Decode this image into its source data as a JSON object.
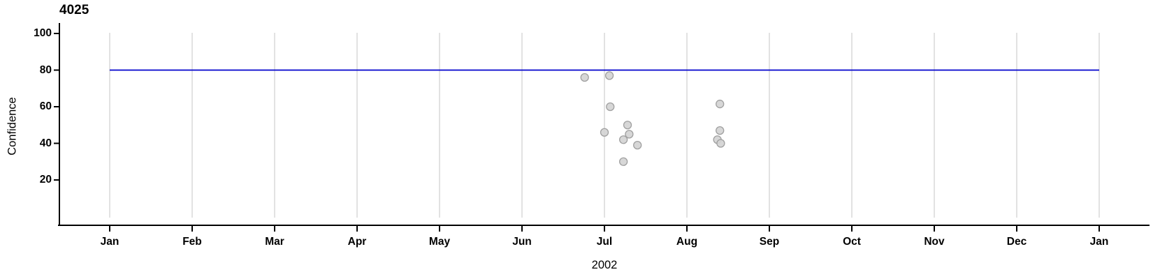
{
  "chart_data": {
    "type": "scatter",
    "title": "4025",
    "xlabel": "2002",
    "ylabel": "Confidence",
    "legend": "none",
    "grid": "vertical month gridlines only",
    "x_axis": {
      "unit": "months of year 2002 (0 = Jan 2002, 12 = Jan 2003)",
      "tick_labels": [
        "Jan",
        "Feb",
        "Mar",
        "Apr",
        "May",
        "Jun",
        "Jul",
        "Aug",
        "Sep",
        "Oct",
        "Nov",
        "Dec",
        "Jan"
      ],
      "range_months": [
        0,
        12
      ],
      "year_label": "2002"
    },
    "y_axis": {
      "label": "Confidence",
      "tick_labels": [
        100,
        80,
        60,
        40,
        20
      ],
      "range": [
        0,
        105
      ]
    },
    "reference_line": {
      "y": 80,
      "span_months": [
        0,
        12
      ],
      "color": "#0000CC"
    },
    "points": [
      {
        "month": 5.76,
        "date_approx": "2002-06-23",
        "confidence": 76
      },
      {
        "month": 6.06,
        "date_approx": "2002-07-02",
        "confidence": 77
      },
      {
        "month": 6.07,
        "date_approx": "2002-07-03",
        "confidence": 60
      },
      {
        "month": 6.0,
        "date_approx": "2002-07-01",
        "confidence": 46
      },
      {
        "month": 6.28,
        "date_approx": "2002-07-09",
        "confidence": 50
      },
      {
        "month": 6.3,
        "date_approx": "2002-07-10",
        "confidence": 45
      },
      {
        "month": 6.23,
        "date_approx": "2002-07-08",
        "confidence": 42
      },
      {
        "month": 6.4,
        "date_approx": "2002-07-13",
        "confidence": 39
      },
      {
        "month": 6.23,
        "date_approx": "2002-07-08",
        "confidence": 30
      },
      {
        "month": 7.4,
        "date_approx": "2002-08-13",
        "confidence": 61.5
      },
      {
        "month": 7.4,
        "date_approx": "2002-08-13",
        "confidence": 47
      },
      {
        "month": 7.37,
        "date_approx": "2002-08-12",
        "confidence": 42
      },
      {
        "month": 7.41,
        "date_approx": "2002-08-13",
        "confidence": 40
      }
    ],
    "style": {
      "point_fill": "#D4D4D4",
      "point_stroke": "#A0A0A0",
      "gridline_color": "#D8D8D8",
      "axis_color": "#000000",
      "refline_color": "#0000CC",
      "background": "#FFFFFF"
    }
  }
}
